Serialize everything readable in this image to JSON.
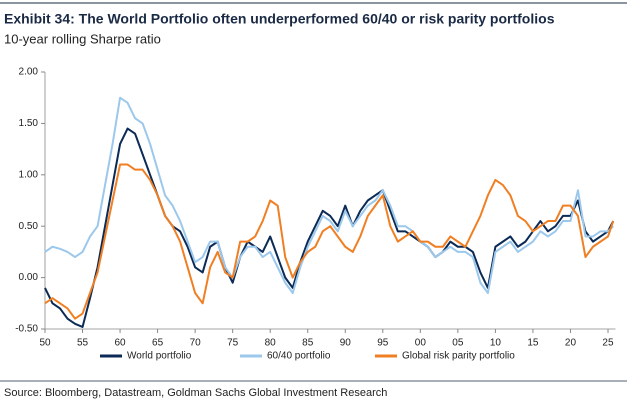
{
  "chart_data": {
    "type": "line",
    "title": "Exhibit 34: The World Portfolio often underperformed 60/40 or risk parity portfolios",
    "subtitle": "10-year rolling Sharpe ratio",
    "source": "Source: Bloomberg, Datastream, Goldman Sachs Global Investment Research",
    "x": [
      1950,
      1951,
      1952,
      1953,
      1954,
      1955,
      1956,
      1957,
      1958,
      1959,
      1960,
      1961,
      1962,
      1963,
      1964,
      1965,
      1966,
      1967,
      1968,
      1969,
      1970,
      1971,
      1972,
      1973,
      1974,
      1975,
      1976,
      1977,
      1978,
      1979,
      1980,
      1981,
      1982,
      1983,
      1984,
      1985,
      1986,
      1987,
      1988,
      1989,
      1990,
      1991,
      1992,
      1993,
      1994,
      1995,
      1996,
      1997,
      1998,
      1999,
      2000,
      2001,
      2002,
      2003,
      2004,
      2005,
      2006,
      2007,
      2008,
      2009,
      2010,
      2011,
      2012,
      2013,
      2014,
      2015,
      2016,
      2017,
      2018,
      2019,
      2020,
      2021,
      2022,
      2023,
      2024,
      2025,
      2025.7
    ],
    "series": [
      {
        "name": "World portfolio",
        "color": "#0b2a55",
        "values": [
          -0.1,
          -0.25,
          -0.3,
          -0.4,
          -0.45,
          -0.48,
          -0.2,
          0.1,
          0.5,
          0.9,
          1.3,
          1.45,
          1.4,
          1.2,
          1.0,
          0.8,
          0.6,
          0.5,
          0.45,
          0.3,
          0.1,
          0.05,
          0.3,
          0.35,
          0.1,
          -0.05,
          0.2,
          0.35,
          0.3,
          0.25,
          0.4,
          0.2,
          0.0,
          -0.1,
          0.15,
          0.35,
          0.5,
          0.65,
          0.6,
          0.5,
          0.7,
          0.5,
          0.65,
          0.75,
          0.8,
          0.85,
          0.65,
          0.45,
          0.45,
          0.4,
          0.35,
          0.3,
          0.2,
          0.25,
          0.35,
          0.3,
          0.3,
          0.25,
          0.05,
          -0.1,
          0.3,
          0.35,
          0.4,
          0.3,
          0.35,
          0.45,
          0.55,
          0.45,
          0.5,
          0.6,
          0.6,
          0.75,
          0.45,
          0.35,
          0.4,
          0.45,
          0.55
        ]
      },
      {
        "name": "60/40 portfolio",
        "color": "#9cc8ec",
        "values": [
          0.25,
          0.3,
          0.28,
          0.25,
          0.2,
          0.25,
          0.4,
          0.5,
          0.9,
          1.3,
          1.75,
          1.7,
          1.55,
          1.5,
          1.3,
          1.05,
          0.8,
          0.7,
          0.55,
          0.35,
          0.15,
          0.2,
          0.35,
          0.35,
          0.1,
          0.0,
          0.2,
          0.3,
          0.3,
          0.2,
          0.25,
          0.1,
          -0.05,
          -0.15,
          0.1,
          0.3,
          0.45,
          0.6,
          0.55,
          0.45,
          0.65,
          0.5,
          0.6,
          0.7,
          0.75,
          0.85,
          0.7,
          0.5,
          0.5,
          0.45,
          0.35,
          0.3,
          0.2,
          0.25,
          0.3,
          0.25,
          0.25,
          0.2,
          -0.05,
          -0.15,
          0.25,
          0.3,
          0.35,
          0.25,
          0.3,
          0.35,
          0.45,
          0.4,
          0.45,
          0.55,
          0.55,
          0.85,
          0.4,
          0.4,
          0.45,
          0.45,
          0.5
        ]
      },
      {
        "name": "Global risk parity portfolio",
        "color": "#f07f23",
        "values": [
          -0.25,
          -0.2,
          -0.25,
          -0.3,
          -0.4,
          -0.35,
          -0.15,
          0.05,
          0.4,
          0.75,
          1.1,
          1.1,
          1.05,
          1.05,
          0.95,
          0.8,
          0.6,
          0.5,
          0.35,
          0.1,
          -0.15,
          -0.25,
          0.1,
          0.25,
          0.05,
          0.0,
          0.35,
          0.35,
          0.4,
          0.55,
          0.75,
          0.7,
          0.2,
          0.0,
          0.15,
          0.25,
          0.3,
          0.45,
          0.5,
          0.4,
          0.3,
          0.25,
          0.4,
          0.6,
          0.7,
          0.8,
          0.5,
          0.35,
          0.4,
          0.45,
          0.35,
          0.35,
          0.3,
          0.3,
          0.4,
          0.35,
          0.3,
          0.45,
          0.6,
          0.8,
          0.95,
          0.9,
          0.8,
          0.6,
          0.55,
          0.45,
          0.5,
          0.55,
          0.55,
          0.7,
          0.7,
          0.6,
          0.2,
          0.3,
          0.35,
          0.4,
          0.55
        ]
      }
    ],
    "xlim": [
      1950,
      2026
    ],
    "xticks": [
      {
        "value": 1950,
        "label": "50"
      },
      {
        "value": 1955,
        "label": "55"
      },
      {
        "value": 1960,
        "label": "60"
      },
      {
        "value": 1965,
        "label": "65"
      },
      {
        "value": 1970,
        "label": "70"
      },
      {
        "value": 1975,
        "label": "75"
      },
      {
        "value": 1980,
        "label": "80"
      },
      {
        "value": 1985,
        "label": "85"
      },
      {
        "value": 1990,
        "label": "90"
      },
      {
        "value": 1995,
        "label": "95"
      },
      {
        "value": 2000,
        "label": "00"
      },
      {
        "value": 2005,
        "label": "05"
      },
      {
        "value": 2010,
        "label": "10"
      },
      {
        "value": 2015,
        "label": "15"
      },
      {
        "value": 2020,
        "label": "20"
      },
      {
        "value": 2025,
        "label": "25"
      }
    ],
    "ylim": [
      -0.5,
      2
    ],
    "yticks": [
      {
        "value": -0.5,
        "label": "-0.50"
      },
      {
        "value": 0,
        "label": "0.00"
      },
      {
        "value": 0.5,
        "label": "0.50"
      },
      {
        "value": 1,
        "label": "1.00"
      },
      {
        "value": 1.5,
        "label": "1.50"
      },
      {
        "value": 2,
        "label": "2.00"
      }
    ],
    "grid": false
  }
}
